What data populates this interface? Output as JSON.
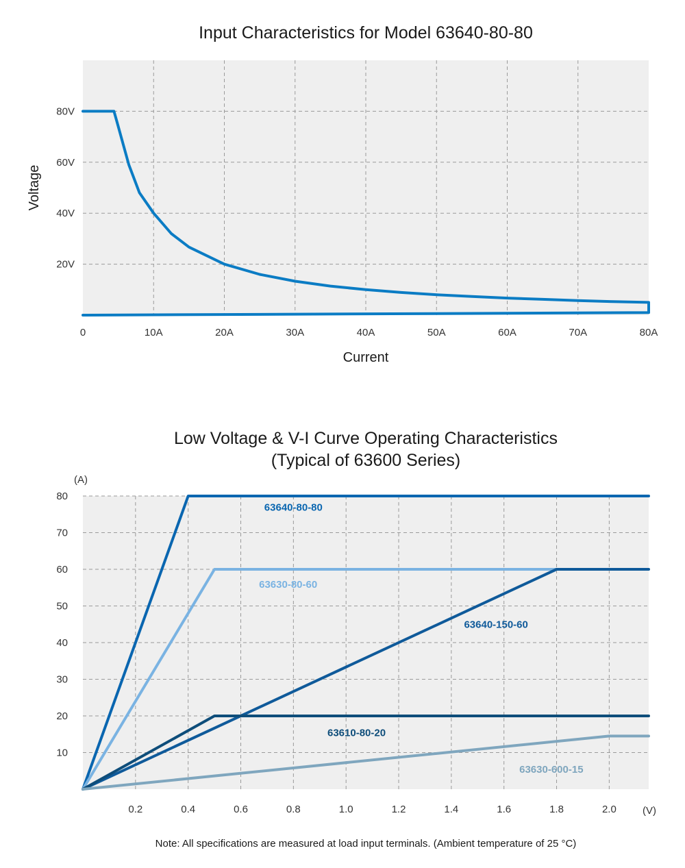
{
  "chart_data": [
    {
      "type": "line",
      "title": "Input Characteristics for Model 63640-80-80",
      "xlabel": "Current",
      "ylabel": "Voltage",
      "xlim": [
        0,
        80
      ],
      "ylim": [
        0,
        100
      ],
      "grid": true,
      "x_ticks": [
        {
          "value": 0,
          "label": "0"
        },
        {
          "value": 10,
          "label": "10A"
        },
        {
          "value": 20,
          "label": "20A"
        },
        {
          "value": 30,
          "label": "30A"
        },
        {
          "value": 40,
          "label": "40A"
        },
        {
          "value": 50,
          "label": "50A"
        },
        {
          "value": 60,
          "label": "60A"
        },
        {
          "value": 70,
          "label": "70A"
        },
        {
          "value": 80,
          "label": "80A"
        }
      ],
      "y_ticks": [
        {
          "value": 20,
          "label": "20V"
        },
        {
          "value": 40,
          "label": "40V"
        },
        {
          "value": 60,
          "label": "60V"
        },
        {
          "value": 80,
          "label": "80V"
        }
      ],
      "series": [
        {
          "color": "#0b7cc4",
          "points": [
            [
              0,
              80
            ],
            [
              4.4,
              80
            ],
            [
              4.8,
              76
            ],
            [
              5.5,
              69
            ],
            [
              6.5,
              59
            ],
            [
              8,
              48
            ],
            [
              10,
              40
            ],
            [
              12.5,
              32
            ],
            [
              15,
              26.7
            ],
            [
              20,
              20
            ],
            [
              25,
              16
            ],
            [
              30,
              13.3
            ],
            [
              35,
              11.4
            ],
            [
              40,
              10
            ],
            [
              45,
              8.9
            ],
            [
              50,
              8
            ],
            [
              55,
              7.3
            ],
            [
              60,
              6.7
            ],
            [
              65,
              6.2
            ],
            [
              70,
              5.7
            ],
            [
              75,
              5.3
            ],
            [
              80,
              5
            ],
            [
              80,
              1
            ],
            [
              0,
              0
            ]
          ]
        }
      ]
    },
    {
      "type": "line",
      "title": "Low Voltage & V-I Curve Operating Characteristics",
      "subtitle": "(Typical of 63600 Series)",
      "xlabel": "(V)",
      "ylabel": "(A)",
      "xlim": [
        0,
        2.15
      ],
      "ylim": [
        0,
        80
      ],
      "grid": true,
      "x_ticks": [
        {
          "value": 0.2,
          "label": "0.2"
        },
        {
          "value": 0.4,
          "label": "0.4"
        },
        {
          "value": 0.6,
          "label": "0.6"
        },
        {
          "value": 0.8,
          "label": "0.8"
        },
        {
          "value": 1.0,
          "label": "1.0"
        },
        {
          "value": 1.2,
          "label": "1.2"
        },
        {
          "value": 1.4,
          "label": "1.4"
        },
        {
          "value": 1.6,
          "label": "1.6"
        },
        {
          "value": 1.8,
          "label": "1.8"
        },
        {
          "value": 2.0,
          "label": "2.0"
        }
      ],
      "y_ticks": [
        {
          "value": 10,
          "label": "10"
        },
        {
          "value": 20,
          "label": "20"
        },
        {
          "value": 30,
          "label": "30"
        },
        {
          "value": 40,
          "label": "40"
        },
        {
          "value": 50,
          "label": "50"
        },
        {
          "value": 60,
          "label": "60"
        },
        {
          "value": 70,
          "label": "70"
        },
        {
          "value": 80,
          "label": "80"
        }
      ],
      "series": [
        {
          "name": "63640-80-80",
          "color": "#0a66b0",
          "points": [
            [
              0,
              0
            ],
            [
              0.4,
              80
            ],
            [
              2.15,
              80
            ]
          ],
          "label_at": [
            0.8,
            76
          ]
        },
        {
          "name": "63630-80-60",
          "color": "#7ab3e2",
          "points": [
            [
              0,
              0
            ],
            [
              0.5,
              60
            ],
            [
              1.8,
              60
            ]
          ],
          "label_at": [
            0.78,
            55
          ]
        },
        {
          "name": "63640-150-60",
          "color": "#0f5a9a",
          "points": [
            [
              0,
              0
            ],
            [
              1.8,
              60
            ],
            [
              2.15,
              60
            ]
          ],
          "label_at": [
            1.57,
            44
          ]
        },
        {
          "name": "63610-80-20",
          "color": "#0e4d7a",
          "points": [
            [
              0,
              0
            ],
            [
              0.5,
              20
            ],
            [
              2.15,
              20
            ]
          ],
          "label_at": [
            1.04,
            14.5
          ]
        },
        {
          "name": "63630-600-15",
          "color": "#7fa6be",
          "points": [
            [
              0,
              0
            ],
            [
              2.0,
              14.5
            ],
            [
              2.15,
              14.5
            ]
          ],
          "label_at": [
            1.78,
            4.5
          ]
        }
      ]
    }
  ],
  "note": "Note: All specifications are measured at load input terminals. (Ambient temperature of 25 °C)"
}
